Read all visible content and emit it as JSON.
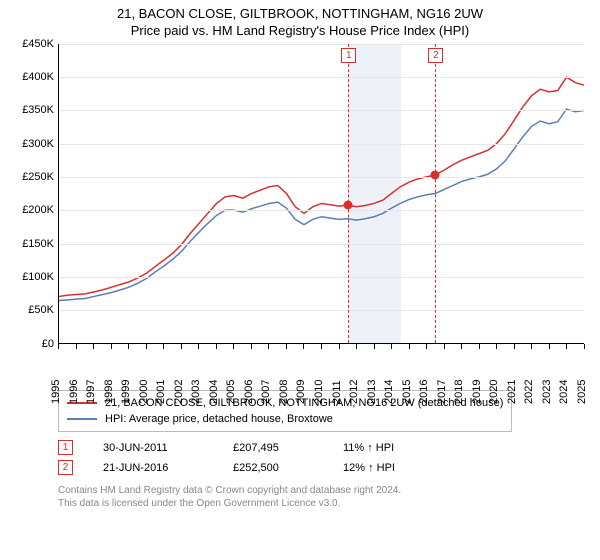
{
  "title_line1": "21, BACON CLOSE, GILTBROOK, NOTTINGHAM, NG16 2UW",
  "title_line2": "Price paid vs. HM Land Registry's House Price Index (HPI)",
  "chart": {
    "type": "line",
    "ylim": [
      0,
      450000
    ],
    "ytick_step": 50000,
    "yticks": [
      "£0",
      "£50K",
      "£100K",
      "£150K",
      "£200K",
      "£250K",
      "£300K",
      "£350K",
      "£400K",
      "£450K"
    ],
    "xlim": [
      1995,
      2025
    ],
    "xticks": [
      1995,
      1996,
      1997,
      1998,
      1999,
      2000,
      2001,
      2002,
      2003,
      2004,
      2005,
      2006,
      2007,
      2008,
      2009,
      2010,
      2011,
      2012,
      2013,
      2014,
      2015,
      2016,
      2017,
      2018,
      2019,
      2020,
      2021,
      2022,
      2023,
      2024,
      2025
    ],
    "grid_color": "#e6e6e6",
    "background_color": "#ffffff",
    "shaded_range": [
      2011.5,
      2014.5
    ],
    "shaded_color": "#eef2f8",
    "sale_markers": [
      {
        "n": "1",
        "x": 2011.5
      },
      {
        "n": "2",
        "x": 2016.47
      }
    ],
    "sale_points": [
      {
        "x": 2011.5,
        "y": 207495
      },
      {
        "x": 2016.47,
        "y": 252500
      }
    ],
    "series": [
      {
        "name": "price_paid",
        "color": "#d53030",
        "width": 1.5,
        "data": [
          [
            1995,
            70000
          ],
          [
            1995.5,
            72000
          ],
          [
            1996,
            73000
          ],
          [
            1996.5,
            74000
          ],
          [
            1997,
            77000
          ],
          [
            1997.5,
            80000
          ],
          [
            1998,
            84000
          ],
          [
            1998.5,
            88000
          ],
          [
            1999,
            92000
          ],
          [
            1999.5,
            98000
          ],
          [
            2000,
            105000
          ],
          [
            2000.5,
            115000
          ],
          [
            2001,
            125000
          ],
          [
            2001.5,
            135000
          ],
          [
            2002,
            148000
          ],
          [
            2002.5,
            165000
          ],
          [
            2003,
            180000
          ],
          [
            2003.5,
            195000
          ],
          [
            2004,
            210000
          ],
          [
            2004.5,
            220000
          ],
          [
            2005,
            222000
          ],
          [
            2005.5,
            218000
          ],
          [
            2006,
            225000
          ],
          [
            2006.5,
            230000
          ],
          [
            2007,
            235000
          ],
          [
            2007.5,
            237000
          ],
          [
            2008,
            225000
          ],
          [
            2008.5,
            205000
          ],
          [
            2009,
            195000
          ],
          [
            2009.5,
            205000
          ],
          [
            2010,
            210000
          ],
          [
            2010.5,
            208000
          ],
          [
            2011,
            206000
          ],
          [
            2011.5,
            207495
          ],
          [
            2012,
            205000
          ],
          [
            2012.5,
            207000
          ],
          [
            2013,
            210000
          ],
          [
            2013.5,
            215000
          ],
          [
            2014,
            225000
          ],
          [
            2014.5,
            235000
          ],
          [
            2015,
            242000
          ],
          [
            2015.5,
            247000
          ],
          [
            2016,
            250000
          ],
          [
            2016.47,
            252500
          ],
          [
            2017,
            260000
          ],
          [
            2017.5,
            268000
          ],
          [
            2018,
            275000
          ],
          [
            2018.5,
            280000
          ],
          [
            2019,
            285000
          ],
          [
            2019.5,
            290000
          ],
          [
            2020,
            300000
          ],
          [
            2020.5,
            315000
          ],
          [
            2021,
            335000
          ],
          [
            2021.5,
            355000
          ],
          [
            2022,
            372000
          ],
          [
            2022.5,
            382000
          ],
          [
            2023,
            378000
          ],
          [
            2023.5,
            380000
          ],
          [
            2024,
            400000
          ],
          [
            2024.5,
            392000
          ],
          [
            2025,
            388000
          ]
        ]
      },
      {
        "name": "hpi",
        "color": "#5b7fb5",
        "width": 1.5,
        "data": [
          [
            1995,
            64000
          ],
          [
            1995.5,
            65000
          ],
          [
            1996,
            66000
          ],
          [
            1996.5,
            67000
          ],
          [
            1997,
            70000
          ],
          [
            1997.5,
            73000
          ],
          [
            1998,
            76000
          ],
          [
            1998.5,
            80000
          ],
          [
            1999,
            84000
          ],
          [
            1999.5,
            90000
          ],
          [
            2000,
            97000
          ],
          [
            2000.5,
            107000
          ],
          [
            2001,
            116000
          ],
          [
            2001.5,
            126000
          ],
          [
            2002,
            138000
          ],
          [
            2002.5,
            153000
          ],
          [
            2003,
            167000
          ],
          [
            2003.5,
            180000
          ],
          [
            2004,
            192000
          ],
          [
            2004.5,
            200000
          ],
          [
            2005,
            200000
          ],
          [
            2005.5,
            197000
          ],
          [
            2006,
            202000
          ],
          [
            2006.5,
            206000
          ],
          [
            2007,
            210000
          ],
          [
            2007.5,
            212000
          ],
          [
            2008,
            203000
          ],
          [
            2008.5,
            186000
          ],
          [
            2009,
            178000
          ],
          [
            2009.5,
            186000
          ],
          [
            2010,
            190000
          ],
          [
            2010.5,
            188000
          ],
          [
            2011,
            186000
          ],
          [
            2011.5,
            187000
          ],
          [
            2012,
            185000
          ],
          [
            2012.5,
            187000
          ],
          [
            2013,
            190000
          ],
          [
            2013.5,
            195000
          ],
          [
            2014,
            203000
          ],
          [
            2014.5,
            210000
          ],
          [
            2015,
            216000
          ],
          [
            2015.5,
            220000
          ],
          [
            2016,
            223000
          ],
          [
            2016.5,
            225000
          ],
          [
            2017,
            231000
          ],
          [
            2017.5,
            237000
          ],
          [
            2018,
            243000
          ],
          [
            2018.5,
            247000
          ],
          [
            2019,
            250000
          ],
          [
            2019.5,
            254000
          ],
          [
            2020,
            262000
          ],
          [
            2020.5,
            274000
          ],
          [
            2021,
            292000
          ],
          [
            2021.5,
            310000
          ],
          [
            2022,
            326000
          ],
          [
            2022.5,
            334000
          ],
          [
            2023,
            330000
          ],
          [
            2023.5,
            333000
          ],
          [
            2024,
            352000
          ],
          [
            2024.5,
            348000
          ],
          [
            2025,
            350000
          ]
        ]
      }
    ]
  },
  "legend": {
    "items": [
      {
        "color": "#d53030",
        "label": "21, BACON CLOSE, GILTBROOK, NOTTINGHAM, NG16 2UW (detached house)"
      },
      {
        "color": "#5b7fb5",
        "label": "HPI: Average price, detached house, Broxtowe"
      }
    ]
  },
  "sales": [
    {
      "n": "1",
      "date": "30-JUN-2011",
      "price": "£207,495",
      "pct": "11% ↑ HPI"
    },
    {
      "n": "2",
      "date": "21-JUN-2016",
      "price": "£252,500",
      "pct": "12% ↑ HPI"
    }
  ],
  "footer_line1": "Contains HM Land Registry data © Crown copyright and database right 2024.",
  "footer_line2": "This data is licensed under the Open Government Licence v3.0."
}
